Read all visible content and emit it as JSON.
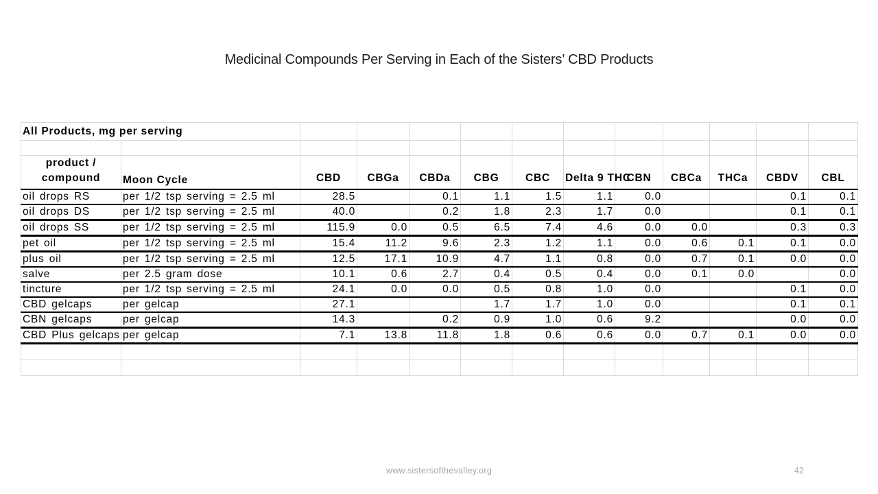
{
  "slide": {
    "title": "Medicinal Compounds Per Serving in Each of the Sisters’ CBD Products"
  },
  "footer": {
    "website": "www.sistersofthevalley.org",
    "page_number": "42"
  },
  "table": {
    "title": "All Products, mg per serving",
    "product_header_line1": "product /",
    "product_header_line2": "compound",
    "moon_cycle_header": "Moon Cycle",
    "compound_columns": [
      "CBD",
      "CBGa",
      "CBDa",
      "CBG",
      "CBC",
      "Delta 9 THC",
      "CBN",
      "CBCa",
      "THCa",
      "CBDV",
      "CBL"
    ],
    "rows": [
      {
        "product": "oil drops RS",
        "moon_cycle": "per 1/2 tsp serving = 2.5 ml",
        "values": [
          "28.5",
          "",
          "0.1",
          "1.1",
          "1.5",
          "1.1",
          "0.0",
          "",
          "",
          "0.1",
          "0.1"
        ]
      },
      {
        "product": "oil drops DS",
        "moon_cycle": "per 1/2 tsp serving = 2.5 ml",
        "values": [
          "40.0",
          "",
          "0.2",
          "1.8",
          "2.3",
          "1.7",
          "0.0",
          "",
          "",
          "0.1",
          "0.1"
        ]
      },
      {
        "product": "oil drops SS",
        "moon_cycle": "per 1/2 tsp serving = 2.5 ml",
        "values": [
          "115.9",
          "0.0",
          "0.5",
          "6.5",
          "7.4",
          "4.6",
          "0.0",
          "0.0",
          "",
          "0.3",
          "0.3"
        ]
      },
      {
        "product": "pet oil",
        "moon_cycle": "per 1/2 tsp serving = 2.5 ml",
        "values": [
          "15.4",
          "11.2",
          "9.6",
          "2.3",
          "1.2",
          "1.1",
          "0.0",
          "0.6",
          "0.1",
          "0.1",
          "0.0"
        ]
      },
      {
        "product": "plus oil",
        "moon_cycle": "per 1/2 tsp serving = 2.5 ml",
        "values": [
          "12.5",
          "17.1",
          "10.9",
          "4.7",
          "1.1",
          "0.8",
          "0.0",
          "0.7",
          "0.1",
          "0.0",
          "0.0"
        ]
      },
      {
        "product": "salve",
        "moon_cycle": "per 2.5 gram dose",
        "values": [
          "10.1",
          "0.6",
          "2.7",
          "0.4",
          "0.5",
          "0.4",
          "0.0",
          "0.1",
          "0.0",
          "",
          "0.0"
        ]
      },
      {
        "product": "tincture",
        "moon_cycle": "per 1/2 tsp serving = 2.5 ml",
        "values": [
          "24.1",
          "0.0",
          "0.0",
          "0.5",
          "0.8",
          "1.0",
          "0.0",
          "",
          "",
          "0.1",
          "0.0"
        ]
      },
      {
        "product": "CBD gelcaps",
        "moon_cycle": "per gelcap",
        "values": [
          "27.1",
          "",
          "",
          "1.7",
          "1.7",
          "1.0",
          "0.0",
          "",
          "",
          "0.1",
          "0.1"
        ]
      },
      {
        "product": "CBN gelcaps",
        "moon_cycle": "per gelcap",
        "values": [
          "14.3",
          "",
          "0.2",
          "0.9",
          "1.0",
          "0.6",
          "9.2",
          "",
          "",
          "0.0",
          "0.0"
        ]
      },
      {
        "product": "CBD Plus gelcaps",
        "moon_cycle": "per gelcap",
        "values": [
          "7.1",
          "13.8",
          "11.8",
          "1.8",
          "0.6",
          "0.6",
          "0.0",
          "0.7",
          "0.1",
          "0.0",
          "0.0"
        ]
      }
    ]
  }
}
